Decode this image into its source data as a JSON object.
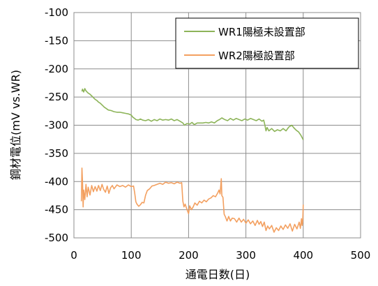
{
  "chart_data": {
    "type": "line",
    "title": "",
    "xlabel": "通電日数(日)",
    "ylabel": "鋼材電位(mV vs.WR)",
    "xlim": [
      0,
      500
    ],
    "ylim": [
      -500,
      -100
    ],
    "x_ticks": [
      "0",
      "100",
      "200",
      "300",
      "400",
      "500"
    ],
    "y_ticks": [
      "-100",
      "-150",
      "-200",
      "-250",
      "-300",
      "-350",
      "-400",
      "-450",
      "-500"
    ],
    "grid": true,
    "legend_position": "top-right",
    "series": [
      {
        "name": "WR1陽極未設置部",
        "color": "#8db459",
        "points": [
          [
            14,
            -240
          ],
          [
            15,
            -236
          ],
          [
            17,
            -241
          ],
          [
            19,
            -235
          ],
          [
            21,
            -239
          ],
          [
            23,
            -241
          ],
          [
            25,
            -243
          ],
          [
            28,
            -245
          ],
          [
            31,
            -248
          ],
          [
            34,
            -251
          ],
          [
            37,
            -254
          ],
          [
            40,
            -256
          ],
          [
            43,
            -259
          ],
          [
            46,
            -261
          ],
          [
            50,
            -265
          ],
          [
            53,
            -268
          ],
          [
            56,
            -270
          ],
          [
            60,
            -273
          ],
          [
            65,
            -274
          ],
          [
            70,
            -276
          ],
          [
            75,
            -277
          ],
          [
            80,
            -277
          ],
          [
            85,
            -278
          ],
          [
            90,
            -279
          ],
          [
            95,
            -280
          ],
          [
            100,
            -282
          ],
          [
            103,
            -286
          ],
          [
            106,
            -288
          ],
          [
            108,
            -290
          ],
          [
            112,
            -291
          ],
          [
            116,
            -289
          ],
          [
            120,
            -291
          ],
          [
            125,
            -292
          ],
          [
            130,
            -290
          ],
          [
            135,
            -293
          ],
          [
            140,
            -290
          ],
          [
            145,
            -292
          ],
          [
            150,
            -289
          ],
          [
            155,
            -291
          ],
          [
            160,
            -290
          ],
          [
            165,
            -291
          ],
          [
            170,
            -289
          ],
          [
            175,
            -292
          ],
          [
            180,
            -290
          ],
          [
            185,
            -293
          ],
          [
            190,
            -296
          ],
          [
            193,
            -300
          ],
          [
            197,
            -297
          ],
          [
            202,
            -298
          ],
          [
            206,
            -295
          ],
          [
            210,
            -299
          ],
          [
            215,
            -296
          ],
          [
            220,
            -296
          ],
          [
            225,
            -296
          ],
          [
            230,
            -295
          ],
          [
            235,
            -296
          ],
          [
            240,
            -294
          ],
          [
            245,
            -296
          ],
          [
            250,
            -292
          ],
          [
            254,
            -290
          ],
          [
            258,
            -287
          ],
          [
            263,
            -290
          ],
          [
            268,
            -292
          ],
          [
            273,
            -288
          ],
          [
            278,
            -291
          ],
          [
            283,
            -288
          ],
          [
            288,
            -290
          ],
          [
            293,
            -292
          ],
          [
            298,
            -289
          ],
          [
            303,
            -291
          ],
          [
            308,
            -288
          ],
          [
            313,
            -290
          ],
          [
            318,
            -292
          ],
          [
            323,
            -289
          ],
          [
            328,
            -293
          ],
          [
            331,
            -291
          ],
          [
            333,
            -299
          ],
          [
            335,
            -310
          ],
          [
            337,
            -304
          ],
          [
            340,
            -310
          ],
          [
            345,
            -306
          ],
          [
            350,
            -311
          ],
          [
            355,
            -308
          ],
          [
            360,
            -310
          ],
          [
            365,
            -306
          ],
          [
            370,
            -310
          ],
          [
            375,
            -303
          ],
          [
            380,
            -300
          ],
          [
            384,
            -305
          ],
          [
            388,
            -309
          ],
          [
            392,
            -312
          ],
          [
            396,
            -318
          ],
          [
            398,
            -322
          ],
          [
            400,
            -326
          ]
        ]
      },
      {
        "name": "WR2陽極設置部",
        "color": "#f3a060",
        "points": [
          [
            13,
            -435
          ],
          [
            14,
            -376
          ],
          [
            15,
            -400
          ],
          [
            16,
            -445
          ],
          [
            17,
            -415
          ],
          [
            19,
            -432
          ],
          [
            21,
            -405
          ],
          [
            23,
            -427
          ],
          [
            25,
            -410
          ],
          [
            28,
            -424
          ],
          [
            31,
            -407
          ],
          [
            34,
            -418
          ],
          [
            37,
            -409
          ],
          [
            40,
            -417
          ],
          [
            43,
            -407
          ],
          [
            46,
            -416
          ],
          [
            49,
            -405
          ],
          [
            52,
            -414
          ],
          [
            55,
            -419
          ],
          [
            58,
            -408
          ],
          [
            61,
            -421
          ],
          [
            64,
            -411
          ],
          [
            67,
            -407
          ],
          [
            70,
            -413
          ],
          [
            75,
            -406
          ],
          [
            80,
            -409
          ],
          [
            85,
            -407
          ],
          [
            90,
            -410
          ],
          [
            95,
            -406
          ],
          [
            100,
            -409
          ],
          [
            104,
            -408
          ],
          [
            106,
            -420
          ],
          [
            108,
            -436
          ],
          [
            110,
            -440
          ],
          [
            113,
            -444
          ],
          [
            116,
            -441
          ],
          [
            119,
            -437
          ],
          [
            122,
            -438
          ],
          [
            125,
            -424
          ],
          [
            128,
            -416
          ],
          [
            132,
            -413
          ],
          [
            136,
            -408
          ],
          [
            140,
            -407
          ],
          [
            145,
            -405
          ],
          [
            150,
            -403
          ],
          [
            155,
            -405
          ],
          [
            160,
            -401
          ],
          [
            165,
            -403
          ],
          [
            170,
            -402
          ],
          [
            175,
            -404
          ],
          [
            180,
            -401
          ],
          [
            185,
            -403
          ],
          [
            188,
            -402
          ],
          [
            190,
            -435
          ],
          [
            192,
            -445
          ],
          [
            194,
            -440
          ],
          [
            196,
            -446
          ],
          [
            198,
            -452
          ],
          [
            200,
            -457
          ],
          [
            202,
            -443
          ],
          [
            205,
            -450
          ],
          [
            208,
            -445
          ],
          [
            211,
            -438
          ],
          [
            215,
            -442
          ],
          [
            219,
            -435
          ],
          [
            223,
            -438
          ],
          [
            227,
            -433
          ],
          [
            231,
            -436
          ],
          [
            235,
            -431
          ],
          [
            239,
            -429
          ],
          [
            243,
            -425
          ],
          [
            247,
            -427
          ],
          [
            251,
            -420
          ],
          [
            253,
            -415
          ],
          [
            255,
            -422
          ],
          [
            257,
            -395
          ],
          [
            258,
            -425
          ],
          [
            260,
            -428
          ],
          [
            262,
            -458
          ],
          [
            264,
            -462
          ],
          [
            267,
            -470
          ],
          [
            270,
            -462
          ],
          [
            273,
            -470
          ],
          [
            276,
            -465
          ],
          [
            280,
            -466
          ],
          [
            284,
            -472
          ],
          [
            288,
            -465
          ],
          [
            292,
            -472
          ],
          [
            296,
            -467
          ],
          [
            300,
            -474
          ],
          [
            304,
            -468
          ],
          [
            308,
            -475
          ],
          [
            312,
            -470
          ],
          [
            316,
            -478
          ],
          [
            320,
            -469
          ],
          [
            323,
            -476
          ],
          [
            326,
            -471
          ],
          [
            329,
            -480
          ],
          [
            332,
            -472
          ],
          [
            335,
            -487
          ],
          [
            338,
            -479
          ],
          [
            341,
            -484
          ],
          [
            345,
            -478
          ],
          [
            349,
            -490
          ],
          [
            353,
            -482
          ],
          [
            357,
            -487
          ],
          [
            361,
            -479
          ],
          [
            365,
            -485
          ],
          [
            369,
            -477
          ],
          [
            373,
            -483
          ],
          [
            377,
            -475
          ],
          [
            381,
            -488
          ],
          [
            385,
            -476
          ],
          [
            389,
            -484
          ],
          [
            393,
            -472
          ],
          [
            395,
            -483
          ],
          [
            397,
            -466
          ],
          [
            398,
            -478
          ],
          [
            399,
            -472
          ],
          [
            400,
            -441
          ]
        ]
      }
    ]
  }
}
